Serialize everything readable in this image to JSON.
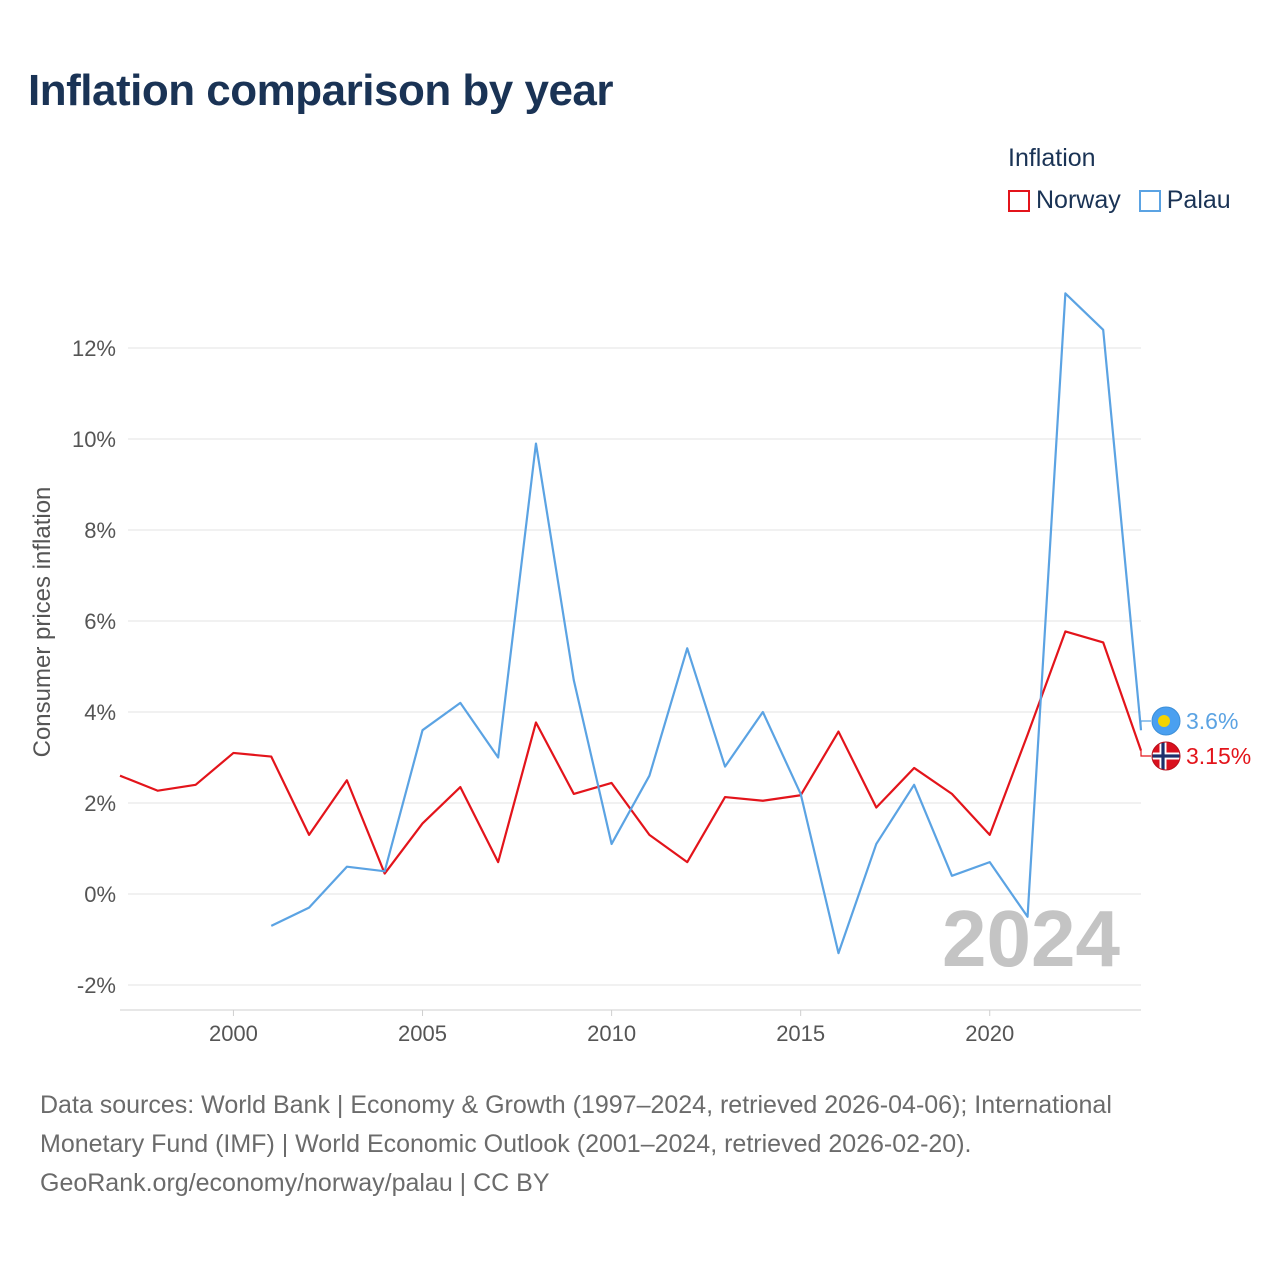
{
  "chart_data": {
    "type": "line",
    "title": "Inflation comparison by year",
    "legend_title": "Inflation",
    "ylabel": "Consumer prices inflation",
    "xlabel": "",
    "current_year": "2024",
    "xlim": [
      1997,
      2024
    ],
    "ylim": [
      -2.2,
      13
    ],
    "y_ticks": [
      -2,
      0,
      2,
      4,
      6,
      8,
      10,
      12
    ],
    "y_tick_labels": [
      "-2%",
      "0%",
      "2%",
      "4%",
      "6%",
      "8%",
      "10%",
      "12%"
    ],
    "x_ticks": [
      2000,
      2005,
      2010,
      2015,
      2020
    ],
    "x_tick_labels": [
      "2000",
      "2005",
      "2010",
      "2015",
      "2020"
    ],
    "series": [
      {
        "name": "Norway",
        "color": "#e3141b",
        "end_label": "3.15%",
        "flag": "norway-flag",
        "x": [
          1997,
          1998,
          1999,
          2000,
          2001,
          2002,
          2003,
          2004,
          2005,
          2006,
          2007,
          2008,
          2009,
          2010,
          2011,
          2012,
          2013,
          2014,
          2015,
          2016,
          2017,
          2018,
          2019,
          2020,
          2021,
          2022,
          2023,
          2024
        ],
        "values": [
          2.6,
          2.27,
          2.4,
          3.1,
          3.02,
          1.3,
          2.5,
          0.45,
          1.55,
          2.35,
          0.7,
          3.77,
          2.2,
          2.44,
          1.3,
          0.7,
          2.13,
          2.05,
          2.17,
          3.57,
          1.9,
          2.77,
          2.2,
          1.3,
          3.5,
          5.77,
          5.53,
          3.15
        ]
      },
      {
        "name": "Palau",
        "color": "#5ba3e3",
        "end_label": "3.6%",
        "flag": "palau-flag",
        "x": [
          2001,
          2002,
          2003,
          2004,
          2005,
          2006,
          2007,
          2008,
          2009,
          2010,
          2011,
          2012,
          2013,
          2014,
          2015,
          2016,
          2017,
          2018,
          2019,
          2020,
          2021,
          2022,
          2023,
          2024
        ],
        "values": [
          -0.7,
          -0.3,
          0.6,
          0.5,
          3.6,
          4.2,
          3.0,
          9.9,
          4.7,
          1.1,
          2.6,
          5.4,
          2.8,
          4.0,
          2.2,
          -1.3,
          1.1,
          2.4,
          0.4,
          0.7,
          -0.5,
          13.2,
          12.4,
          3.6
        ]
      }
    ]
  },
  "footer": {
    "line1": "Data sources: World Bank | Economy & Growth (1997–2024, retrieved 2026-04-06); International",
    "line2": "Monetary Fund (IMF) | World Economic Outlook (2001–2024, retrieved 2026-02-20).",
    "line3": "GeoRank.org/economy/norway/palau | CC BY"
  }
}
